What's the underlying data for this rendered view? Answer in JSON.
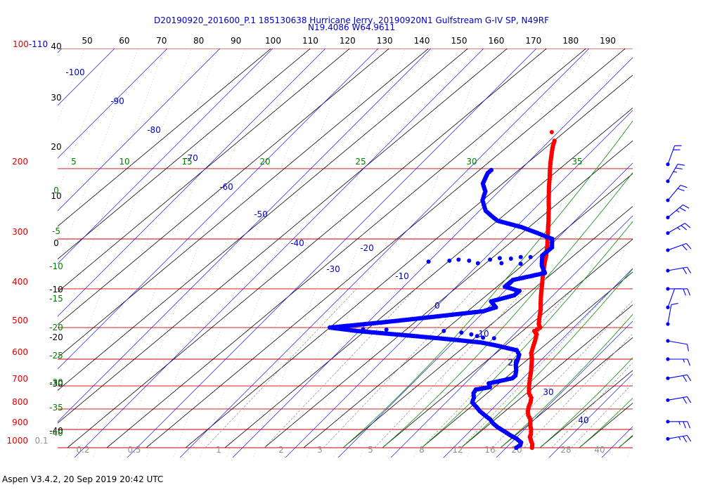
{
  "header": {
    "title_line1": "D20190920_201600_P.1 185130638 Hurricane Jerry, 20190920N1 Gulfstream G-IV SP, N49RF",
    "title_line2": "N19.4086 W64.9611"
  },
  "footer": {
    "text": "Aspen V3.4.2, 20 Sep 2019  20:42 UTC"
  },
  "chart_data": {
    "type": "skew-t",
    "pressure_levels": [
      {
        "label": "100-110",
        "p": 100
      },
      {
        "label": "200",
        "p": 200
      },
      {
        "label": "300",
        "p": 300
      },
      {
        "label": "400",
        "p": 400
      },
      {
        "label": "500",
        "p": 500
      },
      {
        "label": "600",
        "p": 600
      },
      {
        "label": "700",
        "p": 700
      },
      {
        "label": "800",
        "p": 800
      },
      {
        "label": "900",
        "p": 900
      },
      {
        "label": "1000",
        "p": 1000
      }
    ],
    "top_scale": [
      "50",
      "60",
      "70",
      "80",
      "90",
      "100",
      "110",
      "120",
      "130",
      "140",
      "150",
      "160",
      "170",
      "180",
      "190"
    ],
    "temperature_labels": [
      "40",
      "30",
      "20",
      "10",
      "0",
      "-10",
      "-20",
      "-30",
      "-40"
    ],
    "theta_labels": [
      "-100",
      "-90",
      "-80",
      "-70",
      "-60",
      "-50",
      "-40",
      "-30",
      "-20",
      "-10",
      "0",
      "10",
      "20",
      "30",
      "40"
    ],
    "moist_labels_top": [
      "5",
      "10",
      "15",
      "20",
      "25",
      "30",
      "35"
    ],
    "moist_labels_left": [
      "0",
      "-5",
      "-10",
      "-15",
      "-20",
      "-25",
      "-30",
      "-35",
      "-40"
    ],
    "mixing_ratio_labels": [
      "0.1",
      "0.2",
      "0.5",
      "1",
      "2",
      "3",
      "5",
      "8",
      "12",
      "16",
      "20",
      "28",
      "40"
    ],
    "temperature_series": {
      "name": "Temperature",
      "color": "#ff0000",
      "points": [
        {
          "p": 1000,
          "t": 28.0
        },
        {
          "p": 980,
          "t": 27.0
        },
        {
          "p": 960,
          "t": 25.6
        },
        {
          "p": 940,
          "t": 24.2
        },
        {
          "p": 925,
          "t": 23.6
        },
        {
          "p": 900,
          "t": 22.2
        },
        {
          "p": 880,
          "t": 20.8
        },
        {
          "p": 860,
          "t": 19.6
        },
        {
          "p": 850,
          "t": 19.0
        },
        {
          "p": 830,
          "t": 17.2
        },
        {
          "p": 810,
          "t": 15.8
        },
        {
          "p": 790,
          "t": 14.7
        },
        {
          "p": 770,
          "t": 13.8
        },
        {
          "p": 750,
          "t": 12.6
        },
        {
          "p": 730,
          "t": 10.6
        },
        {
          "p": 700,
          "t": 8.4
        },
        {
          "p": 680,
          "t": 7.0
        },
        {
          "p": 660,
          "t": 5.6
        },
        {
          "p": 640,
          "t": 4.2
        },
        {
          "p": 620,
          "t": 2.6
        },
        {
          "p": 600,
          "t": 1.0
        },
        {
          "p": 580,
          "t": -1.0
        },
        {
          "p": 560,
          "t": -2.4
        },
        {
          "p": 540,
          "t": -3.8
        },
        {
          "p": 520,
          "t": -5.4
        },
        {
          "p": 510,
          "t": -7.0
        },
        {
          "p": 500,
          "t": -6.6
        },
        {
          "p": 490,
          "t": -8.0
        },
        {
          "p": 470,
          "t": -10.0
        },
        {
          "p": 450,
          "t": -12.0
        },
        {
          "p": 430,
          "t": -14.4
        },
        {
          "p": 410,
          "t": -16.8
        },
        {
          "p": 390,
          "t": -19.2
        },
        {
          "p": 370,
          "t": -21.8
        },
        {
          "p": 350,
          "t": -24.4
        },
        {
          "p": 330,
          "t": -27.0
        },
        {
          "p": 310,
          "t": -30.0
        },
        {
          "p": 290,
          "t": -33.4
        },
        {
          "p": 270,
          "t": -37.0
        },
        {
          "p": 250,
          "t": -41.0
        },
        {
          "p": 230,
          "t": -45.4
        },
        {
          "p": 210,
          "t": -50.0
        },
        {
          "p": 190,
          "t": -55.0
        },
        {
          "p": 175,
          "t": -58.8
        },
        {
          "p": 168,
          "t": -60.4
        }
      ],
      "isolated_point": {
        "p": 162,
        "t": -63.2
      }
    },
    "dewpoint_series": {
      "name": "Dewpoint",
      "color": "#0000ff",
      "points": [
        {
          "p": 1000,
          "t": 24.0
        },
        {
          "p": 985,
          "t": 24.2
        },
        {
          "p": 970,
          "t": 23.6
        },
        {
          "p": 950,
          "t": 21.4
        },
        {
          "p": 930,
          "t": 18.6
        },
        {
          "p": 910,
          "t": 16.0
        },
        {
          "p": 890,
          "t": 13.2
        },
        {
          "p": 870,
          "t": 10.8
        },
        {
          "p": 850,
          "t": 8.8
        },
        {
          "p": 830,
          "t": 6.2
        },
        {
          "p": 810,
          "t": 3.6
        },
        {
          "p": 790,
          "t": 1.4
        },
        {
          "p": 770,
          "t": -1.0
        },
        {
          "p": 750,
          "t": -2.0
        },
        {
          "p": 730,
          "t": -3.5
        },
        {
          "p": 715,
          "t": -4.0
        },
        {
          "p": 705,
          "t": -1.2
        },
        {
          "p": 690,
          "t": -2.6
        },
        {
          "p": 670,
          "t": 1.8
        },
        {
          "p": 660,
          "t": 1.8
        },
        {
          "p": 640,
          "t": 0.4
        },
        {
          "p": 620,
          "t": -1.4
        },
        {
          "p": 600,
          "t": -2.6
        },
        {
          "p": 585,
          "t": -3.6
        },
        {
          "p": 570,
          "t": -5.6
        },
        {
          "p": 555,
          "t": -12.0
        },
        {
          "p": 545,
          "t": -17.0
        },
        {
          "p": 535,
          "t": -26.0
        },
        {
          "p": 525,
          "t": -36.0
        },
        {
          "p": 510,
          "t": -52.0
        },
        {
          "p": 500,
          "t": -60.0
        },
        {
          "p": 485,
          "t": -48.0
        },
        {
          "p": 470,
          "t": -37.0
        },
        {
          "p": 455,
          "t": -26.0
        },
        {
          "p": 445,
          "t": -24.0
        },
        {
          "p": 430,
          "t": -27.0
        },
        {
          "p": 415,
          "t": -23.0
        },
        {
          "p": 405,
          "t": -23.0
        },
        {
          "p": 395,
          "t": -28.0
        },
        {
          "p": 380,
          "t": -28.0
        },
        {
          "p": 365,
          "t": -22.0
        },
        {
          "p": 350,
          "t": -25.0
        },
        {
          "p": 330,
          "t": -28.0
        },
        {
          "p": 315,
          "t": -28.0
        },
        {
          "p": 300,
          "t": -30.5
        },
        {
          "p": 290,
          "t": -36.0
        },
        {
          "p": 280,
          "t": -42.0
        },
        {
          "p": 270,
          "t": -50.0
        },
        {
          "p": 255,
          "t": -56.0
        },
        {
          "p": 240,
          "t": -60.0
        },
        {
          "p": 228,
          "t": -62.0
        },
        {
          "p": 218,
          "t": -65.0
        },
        {
          "p": 205,
          "t": -67.0
        },
        {
          "p": 200,
          "t": -67.0
        }
      ],
      "scatter_points": [
        {
          "p": 340,
          "t": -45.0
        },
        {
          "p": 340,
          "t": -50.0
        },
        {
          "p": 342,
          "t": -55.0
        },
        {
          "p": 338,
          "t": -40.0
        },
        {
          "p": 336,
          "t": -35.0
        },
        {
          "p": 333,
          "t": -30.5
        },
        {
          "p": 333,
          "t": -33.0
        },
        {
          "p": 335,
          "t": -38.0
        },
        {
          "p": 338,
          "t": -48.0
        },
        {
          "p": 345,
          "t": -42.0
        },
        {
          "p": 345,
          "t": -36.0
        },
        {
          "p": 346,
          "t": -31.0
        },
        {
          "p": 505,
          "t": -55.0
        },
        {
          "p": 505,
          "t": -51.0
        },
        {
          "p": 506,
          "t": -45.0
        },
        {
          "p": 510,
          "t": -30.0
        },
        {
          "p": 515,
          "t": -25.0
        },
        {
          "p": 520,
          "t": -22.0
        },
        {
          "p": 525,
          "t": -20.0
        },
        {
          "p": 530,
          "t": -18.0
        },
        {
          "p": 532,
          "t": -15.0
        }
      ]
    },
    "wind_barbs": [
      {
        "p": 195,
        "dir": 200,
        "speed": 20
      },
      {
        "p": 215,
        "dir": 210,
        "speed": 25
      },
      {
        "p": 240,
        "dir": 220,
        "speed": 20
      },
      {
        "p": 265,
        "dir": 230,
        "speed": 25
      },
      {
        "p": 290,
        "dir": 240,
        "speed": 25
      },
      {
        "p": 320,
        "dir": 250,
        "speed": 20
      },
      {
        "p": 360,
        "dir": 260,
        "speed": 20
      },
      {
        "p": 400,
        "dir": 270,
        "speed": 20
      },
      {
        "p": 445,
        "dir": 200,
        "speed": 10
      },
      {
        "p": 490,
        "dir": 190,
        "speed": 10
      },
      {
        "p": 540,
        "dir": 280,
        "speed": 10
      },
      {
        "p": 600,
        "dir": 270,
        "speed": 15
      },
      {
        "p": 670,
        "dir": 260,
        "speed": 20
      },
      {
        "p": 760,
        "dir": 260,
        "speed": 20
      },
      {
        "p": 860,
        "dir": 270,
        "speed": 25
      },
      {
        "p": 950,
        "dir": 260,
        "speed": 25
      }
    ]
  }
}
